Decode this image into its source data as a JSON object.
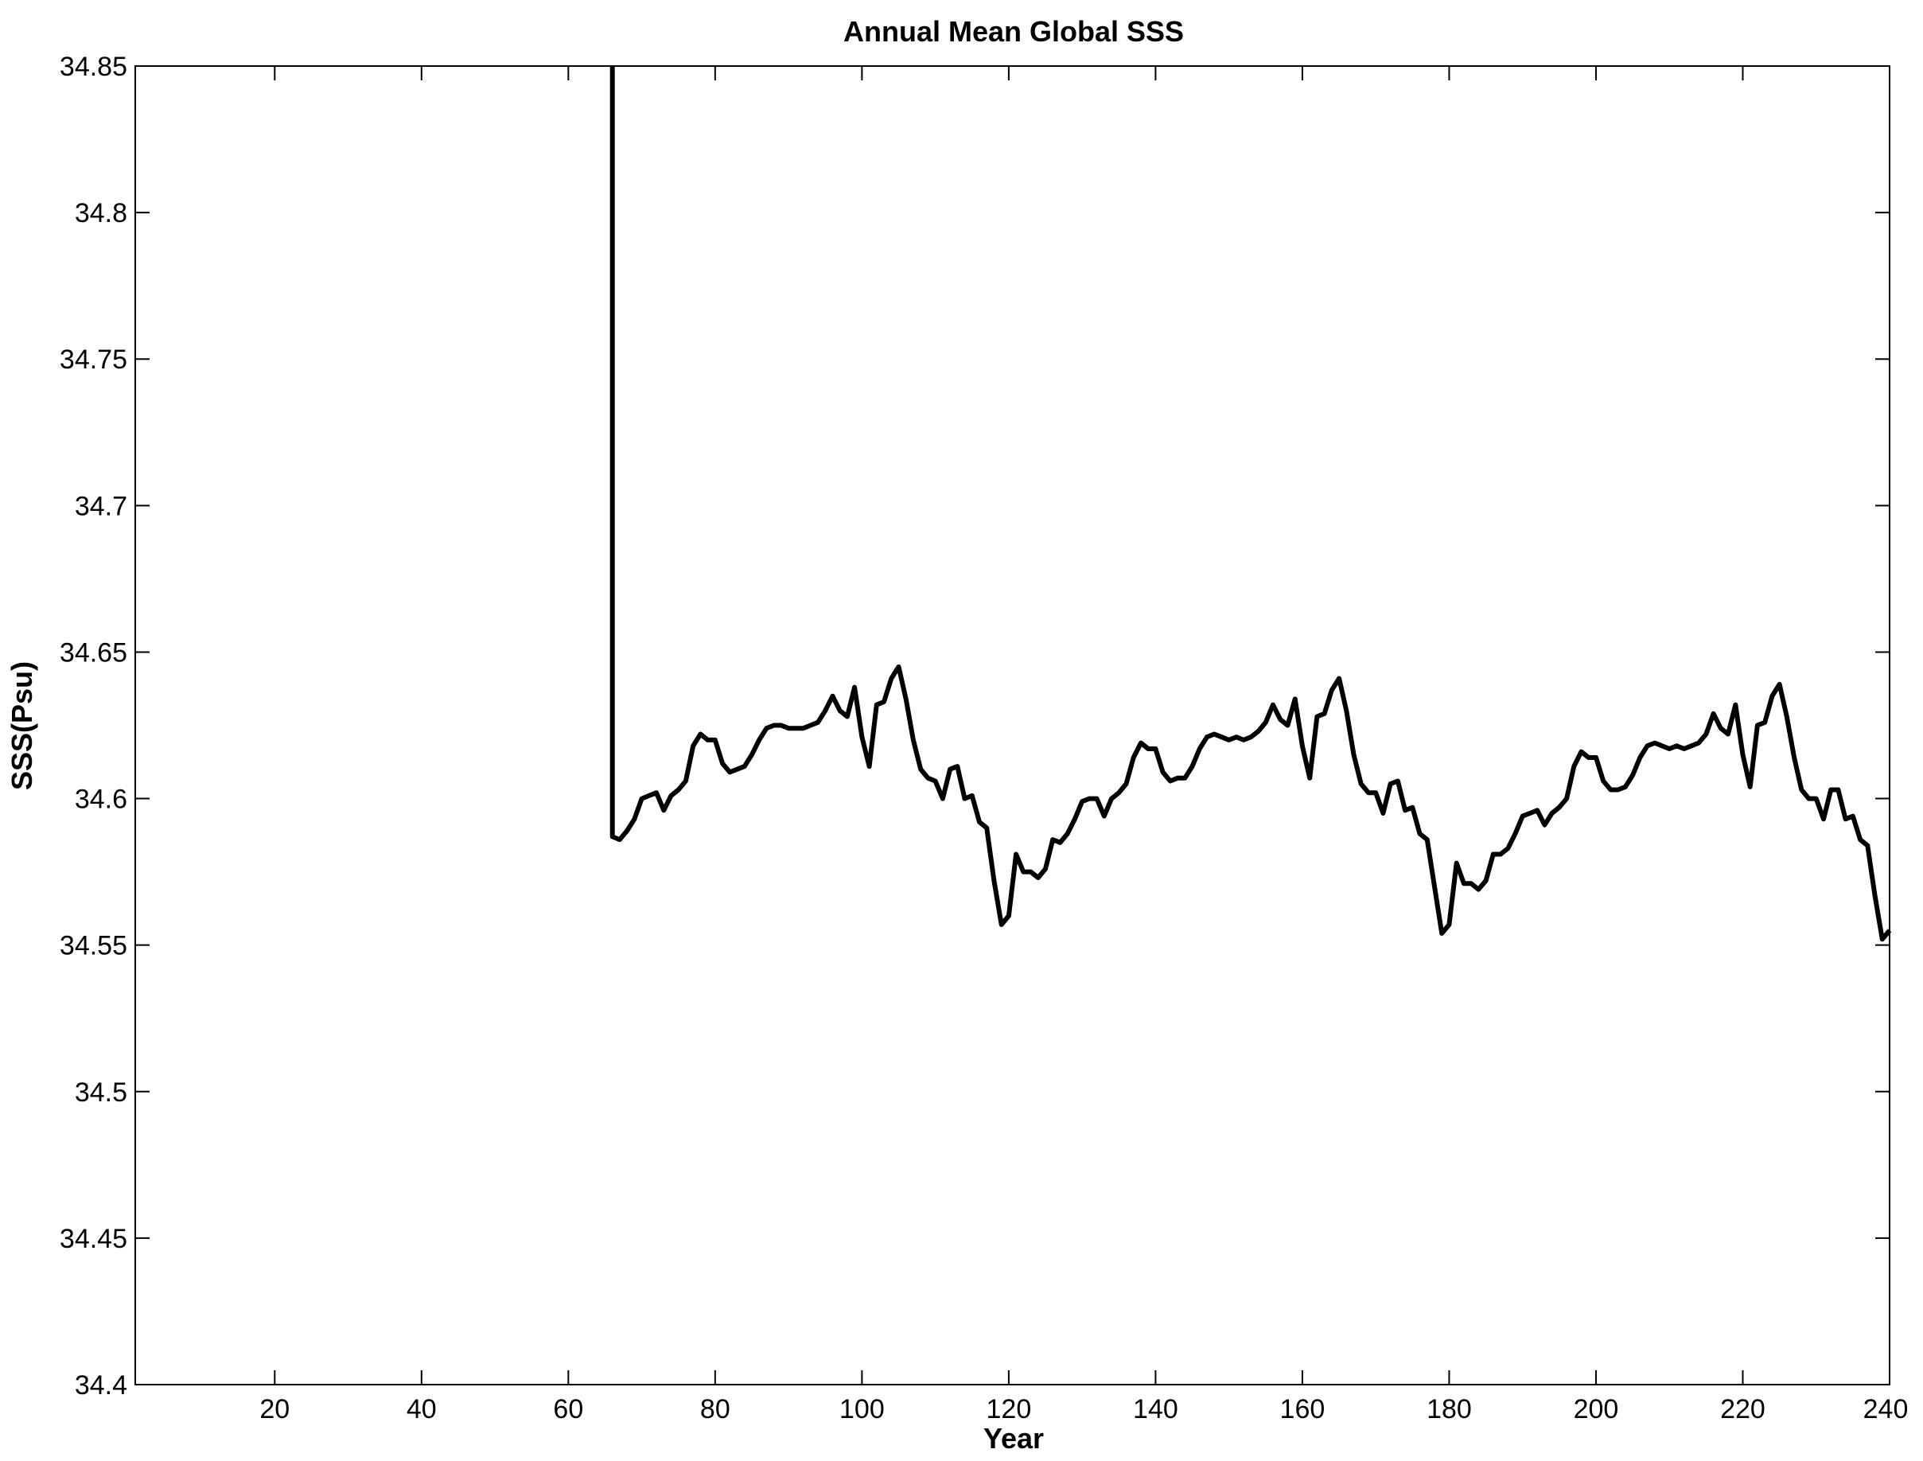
{
  "chart_data": {
    "type": "line",
    "title": "Annual Mean Global SSS",
    "xlabel": "Year",
    "ylabel": "SSS(Psu)",
    "xlim": [
      1,
      240
    ],
    "ylim": [
      34.4,
      34.85
    ],
    "xticks": [
      20,
      40,
      60,
      80,
      100,
      120,
      140,
      160,
      180,
      200,
      220,
      240
    ],
    "xtick_labels": [
      "20",
      "40",
      "60",
      "80",
      "100",
      "120",
      "140",
      "160",
      "180",
      "200",
      "220",
      "240"
    ],
    "yticks": [
      34.4,
      34.45,
      34.5,
      34.55,
      34.6,
      34.65,
      34.7,
      34.75,
      34.8,
      34.85
    ],
    "ytick_labels": [
      "34.4",
      "34.45",
      "34.5",
      "34.55",
      "34.6",
      "34.65",
      "34.7",
      "34.75",
      "34.8",
      "34.85"
    ],
    "grid": false,
    "line_color": "#000000",
    "series": [
      {
        "x": [
          66,
          66,
          67,
          68,
          69,
          70,
          71,
          72,
          73,
          74,
          75,
          76,
          77,
          78,
          79,
          80,
          81,
          82,
          83,
          84,
          85,
          86,
          87,
          88,
          89,
          90,
          91,
          92,
          93,
          94,
          95,
          96,
          97,
          98,
          99,
          100,
          101,
          102,
          103,
          104,
          105,
          106,
          107,
          108,
          109,
          110,
          111,
          112,
          113,
          114,
          115,
          116,
          117,
          118,
          119,
          120,
          121,
          122,
          123,
          124,
          125,
          126,
          127,
          128,
          129,
          130,
          131,
          132,
          133,
          134,
          135,
          136,
          137,
          138,
          139,
          140,
          141,
          142,
          143,
          144,
          145,
          146,
          147,
          148,
          149,
          150,
          151,
          152,
          153,
          154,
          155,
          156,
          157,
          158,
          159,
          160,
          161,
          162,
          163,
          164,
          165,
          166,
          167,
          168,
          169,
          170,
          171,
          172,
          173,
          174,
          175,
          176,
          177,
          178,
          179,
          180,
          181,
          182,
          183,
          184,
          185,
          186,
          187,
          188,
          189,
          190,
          191,
          192,
          193,
          194,
          195,
          196,
          197,
          198,
          199,
          200,
          201,
          202,
          203,
          204,
          205,
          206,
          207,
          208,
          209,
          210,
          211,
          212,
          213,
          214,
          215,
          216,
          217,
          218,
          219,
          220,
          221,
          222,
          223,
          224,
          225,
          226,
          227,
          228,
          229,
          230,
          231,
          232,
          233,
          234,
          235,
          236,
          237,
          238,
          239,
          240
        ],
        "y": [
          34.85,
          34.587,
          34.586,
          34.589,
          34.593,
          34.6,
          34.601,
          34.602,
          34.596,
          34.601,
          34.603,
          34.606,
          34.618,
          34.622,
          34.62,
          34.62,
          34.612,
          34.609,
          34.61,
          34.611,
          34.615,
          34.62,
          34.624,
          34.625,
          34.625,
          34.624,
          34.624,
          34.624,
          34.625,
          34.626,
          34.63,
          34.635,
          34.63,
          34.628,
          34.638,
          34.621,
          34.611,
          34.632,
          34.633,
          34.641,
          34.645,
          34.634,
          34.62,
          34.61,
          34.607,
          34.606,
          34.6,
          34.61,
          34.611,
          34.6,
          34.601,
          34.592,
          34.59,
          34.572,
          34.557,
          34.56,
          34.581,
          34.575,
          34.575,
          34.573,
          34.576,
          34.586,
          34.585,
          34.588,
          34.593,
          34.599,
          34.6,
          34.6,
          34.594,
          34.6,
          34.602,
          34.605,
          34.614,
          34.619,
          34.617,
          34.617,
          34.609,
          34.606,
          34.607,
          34.607,
          34.611,
          34.617,
          34.621,
          34.622,
          34.621,
          34.62,
          34.621,
          34.62,
          34.621,
          34.623,
          34.626,
          34.632,
          34.627,
          34.625,
          34.634,
          34.618,
          34.607,
          34.628,
          34.629,
          34.637,
          34.641,
          34.63,
          34.615,
          34.605,
          34.602,
          34.602,
          34.595,
          34.605,
          34.606,
          34.596,
          34.597,
          34.588,
          34.586,
          34.57,
          34.554,
          34.557,
          34.578,
          34.571,
          34.571,
          34.569,
          34.572,
          34.581,
          34.581,
          34.583,
          34.588,
          34.594,
          34.595,
          34.596,
          34.591,
          34.595,
          34.597,
          34.6,
          34.611,
          34.616,
          34.614,
          34.614,
          34.606,
          34.603,
          34.603,
          34.604,
          34.608,
          34.614,
          34.618,
          34.619,
          34.618,
          34.617,
          34.618,
          34.617,
          34.618,
          34.619,
          34.622,
          34.629,
          34.624,
          34.622,
          34.632,
          34.615,
          34.604,
          34.625,
          34.626,
          34.635,
          34.639,
          34.628,
          34.614,
          34.603,
          34.6,
          34.6,
          34.593,
          34.603,
          34.603,
          34.593,
          34.594,
          34.586,
          34.584,
          34.567,
          34.552,
          34.555
        ]
      }
    ]
  }
}
